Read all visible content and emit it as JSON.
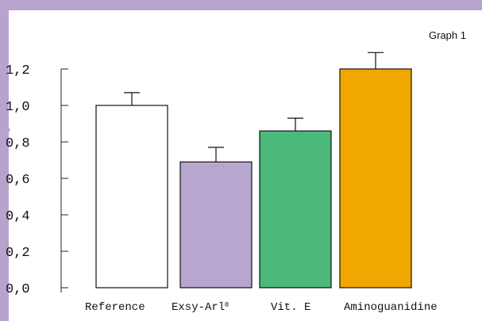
{
  "chart_data": {
    "type": "bar",
    "title": "Graph 1",
    "categories": [
      "Reference",
      "Exsy-Arl®",
      "Vit. E",
      "Aminoguanidine"
    ],
    "values": [
      1.0,
      0.69,
      0.86,
      1.2
    ],
    "errors": [
      0.07,
      0.08,
      0.07,
      0.09
    ],
    "colors": [
      "#ffffff",
      "#b7a7cf",
      "#4cb97b",
      "#f0a800"
    ],
    "yticks": [
      "0,0",
      "0,2",
      "0,4",
      "0,6",
      "0,8",
      "1,0",
      "1,2"
    ],
    "ylim": [
      0,
      1.2
    ],
    "xlabel": "",
    "ylabel": "",
    "grid": false,
    "legend": "none"
  },
  "frame": {
    "accent": "#b7a3cd"
  }
}
